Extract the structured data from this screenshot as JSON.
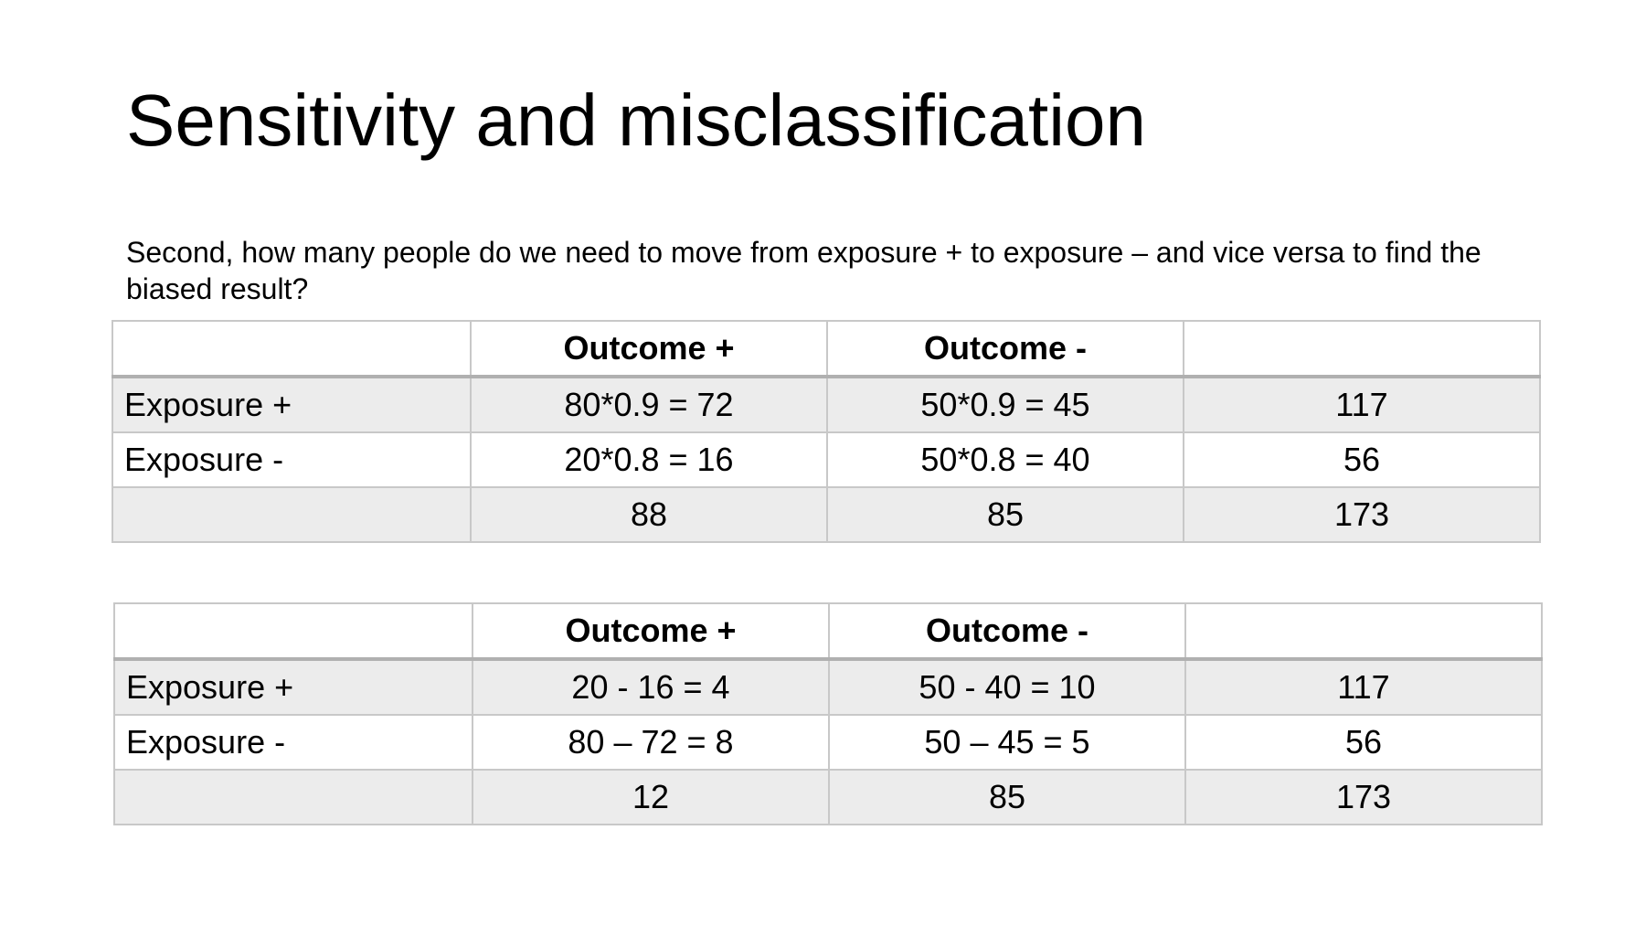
{
  "slide": {
    "title": "Sensitivity and misclassification",
    "subtitle": "Second, how many people do we need to move from exposure + to exposure – and vice versa to find the biased result?"
  },
  "table1": {
    "header": [
      "",
      "Outcome +",
      "Outcome -",
      ""
    ],
    "rows": [
      [
        "Exposure +",
        "80*0.9 = 72",
        "50*0.9 = 45",
        "117"
      ],
      [
        "Exposure -",
        "20*0.8 = 16",
        "50*0.8 = 40",
        "56"
      ],
      [
        "",
        "88",
        "85",
        "173"
      ]
    ]
  },
  "table2": {
    "header": [
      "",
      "Outcome +",
      "Outcome -",
      ""
    ],
    "rows": [
      [
        "Exposure +",
        "20 - 16 = 4",
        "50 - 40 = 10",
        "117"
      ],
      [
        "Exposure -",
        "80 – 72 = 8",
        "50 – 45 = 5",
        "56"
      ],
      [
        "",
        "12",
        "85",
        "173"
      ]
    ]
  },
  "colors": {
    "text": "#000000",
    "background": "#ffffff",
    "shaded_row": "#ececec",
    "border": "#c8c8c8"
  }
}
